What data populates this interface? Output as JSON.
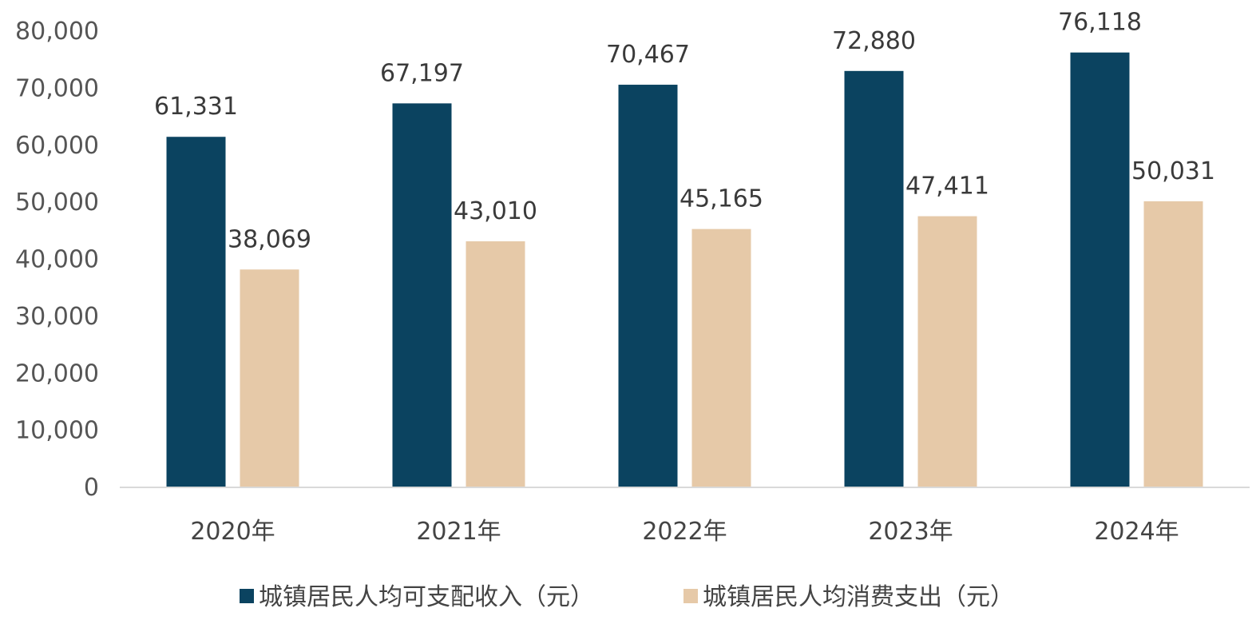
{
  "chart_data": {
    "type": "bar",
    "categories": [
      "2020年",
      "2021年",
      "2022年",
      "2023年",
      "2024年"
    ],
    "series": [
      {
        "name": "城镇居民人均可支配收入（元）",
        "values": [
          61331,
          67197,
          70467,
          72880,
          76118
        ],
        "color": "#0b4360"
      },
      {
        "name": "城镇居民人均消费支出（元）",
        "values": [
          38069,
          43010,
          45165,
          47411,
          50031
        ],
        "color": "#e6c9a8"
      }
    ],
    "data_labels": [
      [
        "61,331",
        "67,197",
        "70,467",
        "72,880",
        "76,118"
      ],
      [
        "38,069",
        "43,010",
        "45,165",
        "47,411",
        "50,031"
      ]
    ],
    "y_ticks": [
      "0",
      "10,000",
      "20,000",
      "30,000",
      "40,000",
      "50,000",
      "60,000",
      "70,000",
      "80,000"
    ],
    "y_tick_values": [
      0,
      10000,
      20000,
      30000,
      40000,
      50000,
      60000,
      70000,
      80000
    ],
    "ylim": [
      0,
      80000
    ],
    "grid": false,
    "legend_position": "bottom",
    "axis_color": "#d9d9d9"
  }
}
